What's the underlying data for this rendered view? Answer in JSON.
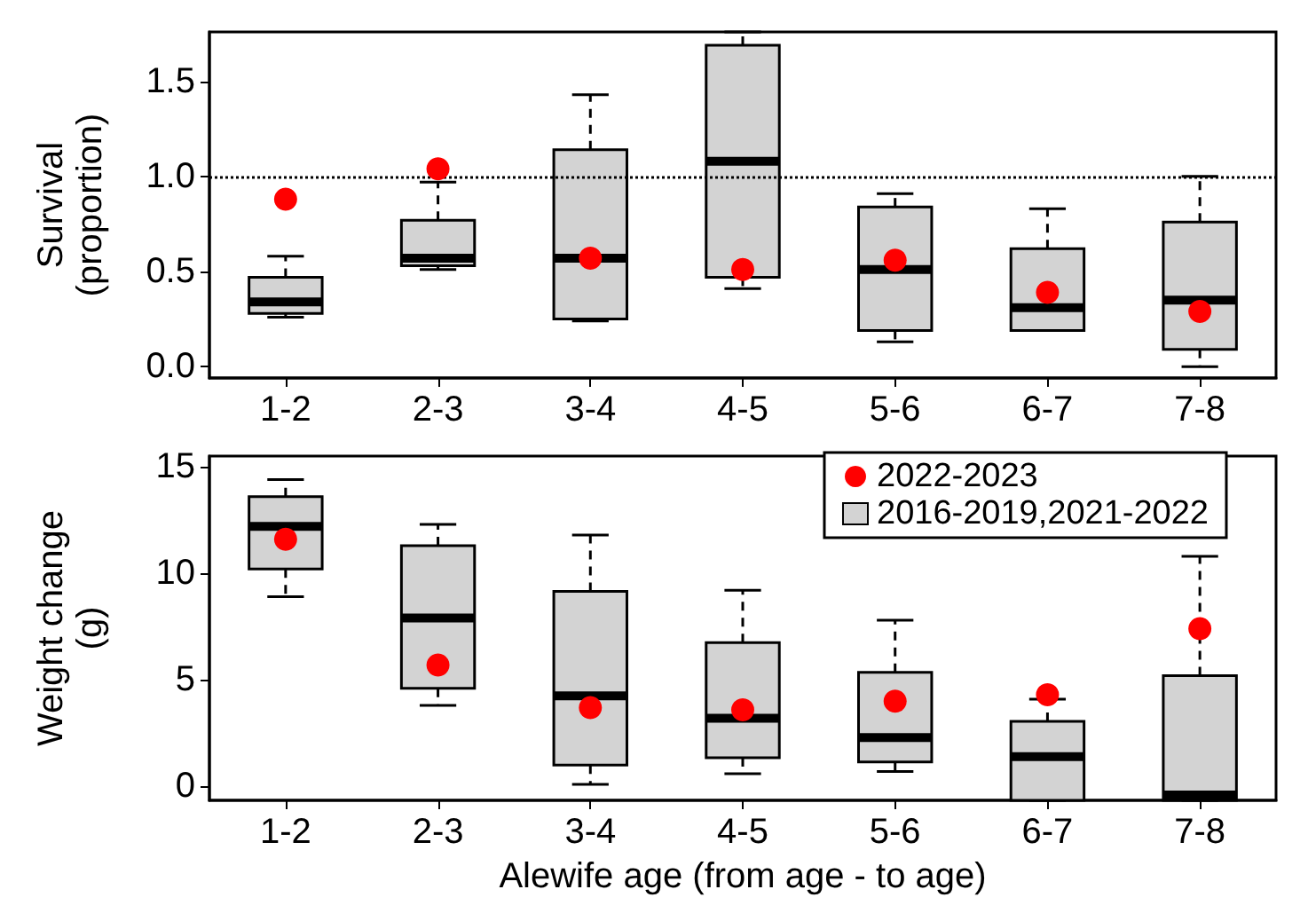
{
  "chart_data": [
    {
      "type": "box",
      "ylabel": "Survival\n(proportion)",
      "categories": [
        "1-2",
        "2-3",
        "3-4",
        "4-5",
        "5-6",
        "6-7",
        "7-8"
      ],
      "ylim": [
        -0.06,
        1.76
      ],
      "yticks": [
        {
          "value": 0,
          "label": "0.0"
        },
        {
          "value": 0.5,
          "label": "0.5"
        },
        {
          "value": 1,
          "label": "1.0"
        },
        {
          "value": 1.5,
          "label": "1.5"
        }
      ],
      "grid": false,
      "legend": false,
      "marker": "circle",
      "ref_lines": [
        {
          "axis": "y",
          "value": 1,
          "line_style": "dotted",
          "color": "#000000"
        }
      ],
      "series": [
        {
          "type": "scatter",
          "color": "#ff0000",
          "x": [
            "1-2",
            "2-3",
            "3-4",
            "4-5",
            "5-6",
            "6-7",
            "7-8"
          ],
          "values": [
            0.88,
            1.04,
            0.57,
            0.51,
            0.56,
            0.39,
            0.29
          ]
        },
        {
          "type": "box",
          "color": "#d3d3d3",
          "boxes": [
            {
              "low": 0.26,
              "q1": 0.28,
              "median": 0.34,
              "q3": 0.47,
              "high": 0.58
            },
            {
              "low": 0.51,
              "q1": 0.53,
              "median": 0.57,
              "q3": 0.77,
              "high": 0.97
            },
            {
              "low": 0.24,
              "q1": 0.25,
              "median": 0.57,
              "q3": 1.14,
              "high": 1.43
            },
            {
              "low": 0.41,
              "q1": 0.47,
              "median": 1.08,
              "q3": 1.69,
              "high": 1.76
            },
            {
              "low": 0.13,
              "q1": 0.19,
              "median": 0.51,
              "q3": 0.84,
              "high": 0.91
            },
            {
              "low": 0.19,
              "q1": 0.19,
              "median": 0.31,
              "q3": 0.62,
              "high": 0.83
            },
            {
              "low": 0.0,
              "q1": 0.09,
              "median": 0.35,
              "q3": 0.76,
              "high": 1.0
            }
          ]
        }
      ]
    },
    {
      "type": "box",
      "ylabel": "Weight change\n(g)",
      "xlabel": "Alewife age (from age - to age)",
      "categories": [
        "1-2",
        "2-3",
        "3-4",
        "4-5",
        "5-6",
        "6-7",
        "7-8"
      ],
      "ylim": [
        -0.65,
        15.5
      ],
      "yticks": [
        0,
        5,
        10,
        15
      ],
      "grid": false,
      "legend": "top right",
      "marker": "circle",
      "series": [
        {
          "name": "2022-2023",
          "type": "scatter",
          "color": "#ff0000",
          "x": [
            "1-2",
            "2-3",
            "3-4",
            "4-5",
            "5-6",
            "6-7",
            "7-8"
          ],
          "values": [
            11.6,
            5.7,
            3.7,
            3.6,
            4.0,
            4.3,
            7.4
          ]
        },
        {
          "name": "2016-2019,2021-2022",
          "type": "box",
          "color": "#d3d3d3",
          "boxes": [
            {
              "low": 8.9,
              "q1": 10.2,
              "median": 12.2,
              "q3": 13.6,
              "high": 14.4
            },
            {
              "low": 3.8,
              "q1": 4.6,
              "median": 7.9,
              "q3": 11.3,
              "high": 12.3
            },
            {
              "low": 0.1,
              "q1": 1.0,
              "median": 4.25,
              "q3": 9.15,
              "high": 11.8
            },
            {
              "low": 0.6,
              "q1": 1.35,
              "median": 3.2,
              "q3": 6.75,
              "high": 9.2
            },
            {
              "low": 0.7,
              "q1": 1.15,
              "median": 2.3,
              "q3": 5.35,
              "high": 7.8
            },
            {
              "low": -0.65,
              "q1": -0.65,
              "median": 1.4,
              "q3": 3.05,
              "high": 4.1
            },
            {
              "low": -0.65,
              "q1": -0.65,
              "median": -0.4,
              "q3": 5.2,
              "high": 10.8
            }
          ]
        }
      ]
    }
  ]
}
